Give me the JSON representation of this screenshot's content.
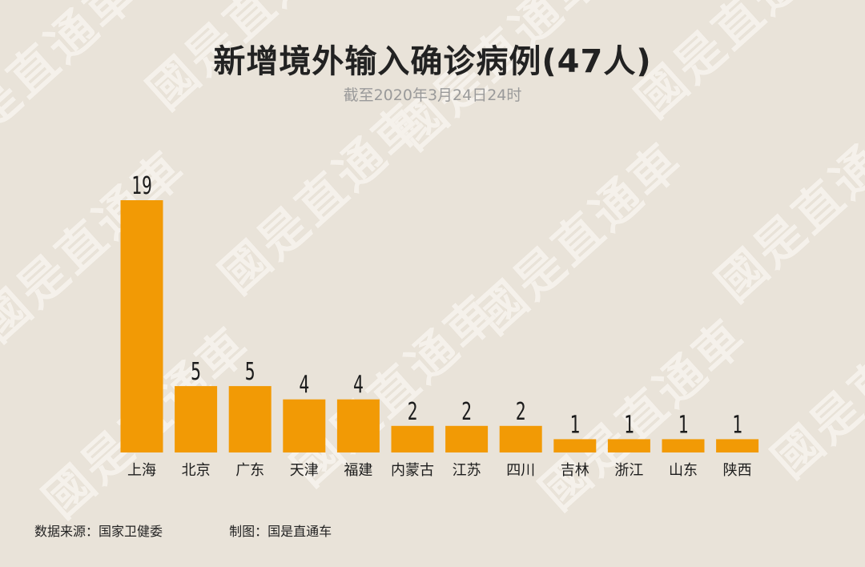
{
  "colors": {
    "background": "#e9e3d9",
    "bar": "#f29a05",
    "text": "#1c1c1c",
    "subtitle": "#9a9a9a"
  },
  "watermark": {
    "text": "國是直通車"
  },
  "footer": {
    "source": "数据来源：国家卫健委",
    "credit": "制图：国是直通车"
  },
  "chart_data": {
    "type": "bar",
    "title": "新增境外输入确诊病例(47人)",
    "subtitle": "截至2020年3月24日24时",
    "categories": [
      "上海",
      "北京",
      "广东",
      "天津",
      "福建",
      "内蒙古",
      "江苏",
      "四川",
      "吉林",
      "浙江",
      "山东",
      "陕西"
    ],
    "values": [
      19,
      5,
      5,
      4,
      4,
      2,
      2,
      2,
      1,
      1,
      1,
      1
    ],
    "xlabel": "",
    "ylabel": "",
    "ylim": [
      0,
      19
    ],
    "grid": false,
    "legend": "none",
    "data_labels": true
  }
}
